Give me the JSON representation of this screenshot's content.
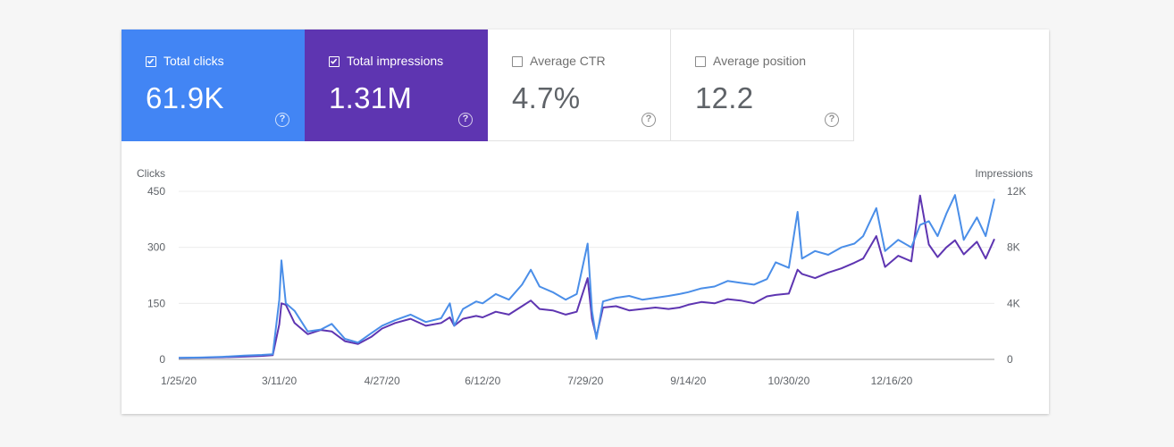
{
  "metrics": [
    {
      "label": "Total clicks",
      "value": "61.9K",
      "selected": true,
      "color": "#4285f4",
      "icon": "help-icon"
    },
    {
      "label": "Total impressions",
      "value": "1.31M",
      "selected": true,
      "color": "#5e35b1",
      "icon": "help-icon"
    },
    {
      "label": "Average CTR",
      "value": "4.7%",
      "selected": false,
      "color": "#ffffff",
      "icon": "help-icon"
    },
    {
      "label": "Average position",
      "value": "12.2",
      "selected": false,
      "color": "#ffffff",
      "icon": "help-icon"
    }
  ],
  "chart_data": {
    "type": "line",
    "left_axis_title": "Clicks",
    "right_axis_title": "Impressions",
    "left_ticks": [
      {
        "value": 0,
        "label": "0"
      },
      {
        "value": 150,
        "label": "150"
      },
      {
        "value": 300,
        "label": "300"
      },
      {
        "value": 450,
        "label": "450"
      }
    ],
    "right_ticks": [
      {
        "value": 0,
        "label": "0"
      },
      {
        "value": 4000,
        "label": "4K"
      },
      {
        "value": 8000,
        "label": "8K"
      },
      {
        "value": 12000,
        "label": "12K"
      }
    ],
    "ylim_left": [
      0,
      450
    ],
    "ylim_right": [
      0,
      12000
    ],
    "x_start": "1/25/20",
    "x_end": "2/1/21",
    "x_tick_labels": [
      "1/25/20",
      "3/11/20",
      "4/27/20",
      "6/12/20",
      "7/29/20",
      "9/14/20",
      "10/30/20",
      "12/16/20"
    ],
    "grid": true,
    "series": [
      {
        "name": "Total clicks",
        "axis": "left",
        "color": "#4a8ee8",
        "points": [
          [
            "1/25/20",
            4
          ],
          [
            "2/4/20",
            5
          ],
          [
            "2/14/20",
            7
          ],
          [
            "2/24/20",
            10
          ],
          [
            "3/3/20",
            12
          ],
          [
            "3/8/20",
            14
          ],
          [
            "3/11/20",
            160
          ],
          [
            "3/12/20",
            265
          ],
          [
            "3/14/20",
            150
          ],
          [
            "3/18/20",
            130
          ],
          [
            "3/24/20",
            75
          ],
          [
            "3/30/20",
            80
          ],
          [
            "4/4/20",
            95
          ],
          [
            "4/10/20",
            55
          ],
          [
            "4/16/20",
            45
          ],
          [
            "4/22/20",
            70
          ],
          [
            "4/27/20",
            90
          ],
          [
            "5/3/20",
            105
          ],
          [
            "5/10/20",
            120
          ],
          [
            "5/17/20",
            100
          ],
          [
            "5/24/20",
            110
          ],
          [
            "5/28/20",
            150
          ],
          [
            "5/30/20",
            90
          ],
          [
            "6/3/20",
            135
          ],
          [
            "6/9/20",
            155
          ],
          [
            "6/12/20",
            150
          ],
          [
            "6/18/20",
            175
          ],
          [
            "6/24/20",
            160
          ],
          [
            "6/30/20",
            200
          ],
          [
            "7/4/20",
            240
          ],
          [
            "7/8/20",
            195
          ],
          [
            "7/14/20",
            180
          ],
          [
            "7/20/20",
            160
          ],
          [
            "7/25/20",
            175
          ],
          [
            "7/30/20",
            310
          ],
          [
            "8/1/20",
            130
          ],
          [
            "8/3/20",
            55
          ],
          [
            "8/6/20",
            155
          ],
          [
            "8/12/20",
            165
          ],
          [
            "8/18/20",
            170
          ],
          [
            "8/24/20",
            160
          ],
          [
            "8/30/20",
            165
          ],
          [
            "9/5/20",
            170
          ],
          [
            "9/10/20",
            175
          ],
          [
            "9/14/20",
            180
          ],
          [
            "9/20/20",
            190
          ],
          [
            "9/26/20",
            195
          ],
          [
            "10/2/20",
            210
          ],
          [
            "10/8/20",
            205
          ],
          [
            "10/14/20",
            200
          ],
          [
            "10/20/20",
            215
          ],
          [
            "10/24/20",
            260
          ],
          [
            "10/30/20",
            245
          ],
          [
            "11/3/20",
            395
          ],
          [
            "11/5/20",
            270
          ],
          [
            "11/11/20",
            290
          ],
          [
            "11/17/20",
            280
          ],
          [
            "11/23/20",
            300
          ],
          [
            "11/29/20",
            310
          ],
          [
            "12/3/20",
            330
          ],
          [
            "12/9/20",
            405
          ],
          [
            "12/13/20",
            290
          ],
          [
            "12/19/20",
            320
          ],
          [
            "12/25/20",
            300
          ],
          [
            "12/29/20",
            360
          ],
          [
            "1/2/21",
            370
          ],
          [
            "1/6/21",
            330
          ],
          [
            "1/10/21",
            390
          ],
          [
            "1/14/21",
            440
          ],
          [
            "1/18/21",
            320
          ],
          [
            "1/24/21",
            380
          ],
          [
            "1/28/21",
            330
          ],
          [
            "2/1/21",
            430
          ]
        ]
      },
      {
        "name": "Total impressions",
        "axis": "right",
        "color": "#5e35b1",
        "points": [
          [
            "1/25/20",
            100
          ],
          [
            "2/4/20",
            120
          ],
          [
            "2/14/20",
            150
          ],
          [
            "2/24/20",
            200
          ],
          [
            "3/3/20",
            250
          ],
          [
            "3/8/20",
            300
          ],
          [
            "3/11/20",
            2500
          ],
          [
            "3/12/20",
            4000
          ],
          [
            "3/14/20",
            3900
          ],
          [
            "3/18/20",
            2600
          ],
          [
            "3/24/20",
            1800
          ],
          [
            "3/30/20",
            2100
          ],
          [
            "4/4/20",
            2000
          ],
          [
            "4/10/20",
            1300
          ],
          [
            "4/16/20",
            1100
          ],
          [
            "4/22/20",
            1600
          ],
          [
            "4/27/20",
            2200
          ],
          [
            "5/3/20",
            2600
          ],
          [
            "5/10/20",
            2900
          ],
          [
            "5/17/20",
            2400
          ],
          [
            "5/24/20",
            2600
          ],
          [
            "5/28/20",
            3000
          ],
          [
            "5/30/20",
            2400
          ],
          [
            "6/3/20",
            2900
          ],
          [
            "6/9/20",
            3100
          ],
          [
            "6/12/20",
            3000
          ],
          [
            "6/18/20",
            3400
          ],
          [
            "6/24/20",
            3200
          ],
          [
            "6/30/20",
            3800
          ],
          [
            "7/4/20",
            4200
          ],
          [
            "7/8/20",
            3600
          ],
          [
            "7/14/20",
            3500
          ],
          [
            "7/20/20",
            3200
          ],
          [
            "7/25/20",
            3400
          ],
          [
            "7/30/20",
            5800
          ],
          [
            "8/1/20",
            2900
          ],
          [
            "8/3/20",
            1600
          ],
          [
            "8/6/20",
            3700
          ],
          [
            "8/12/20",
            3800
          ],
          [
            "8/18/20",
            3500
          ],
          [
            "8/24/20",
            3600
          ],
          [
            "8/30/20",
            3700
          ],
          [
            "9/5/20",
            3600
          ],
          [
            "9/10/20",
            3700
          ],
          [
            "9/14/20",
            3900
          ],
          [
            "9/20/20",
            4100
          ],
          [
            "9/26/20",
            4000
          ],
          [
            "10/2/20",
            4300
          ],
          [
            "10/8/20",
            4200
          ],
          [
            "10/14/20",
            4000
          ],
          [
            "10/20/20",
            4500
          ],
          [
            "10/24/20",
            4600
          ],
          [
            "10/30/20",
            4700
          ],
          [
            "11/3/20",
            6400
          ],
          [
            "11/5/20",
            6100
          ],
          [
            "11/11/20",
            5800
          ],
          [
            "11/17/20",
            6200
          ],
          [
            "11/23/20",
            6500
          ],
          [
            "11/29/20",
            6900
          ],
          [
            "12/3/20",
            7200
          ],
          [
            "12/9/20",
            8800
          ],
          [
            "12/13/20",
            6600
          ],
          [
            "12/19/20",
            7400
          ],
          [
            "12/25/20",
            7000
          ],
          [
            "12/29/20",
            11700
          ],
          [
            "1/2/21",
            8200
          ],
          [
            "1/6/21",
            7300
          ],
          [
            "1/10/21",
            8000
          ],
          [
            "1/14/21",
            8500
          ],
          [
            "1/18/21",
            7500
          ],
          [
            "1/24/21",
            8400
          ],
          [
            "1/28/21",
            7200
          ],
          [
            "2/1/21",
            8600
          ]
        ]
      }
    ]
  }
}
